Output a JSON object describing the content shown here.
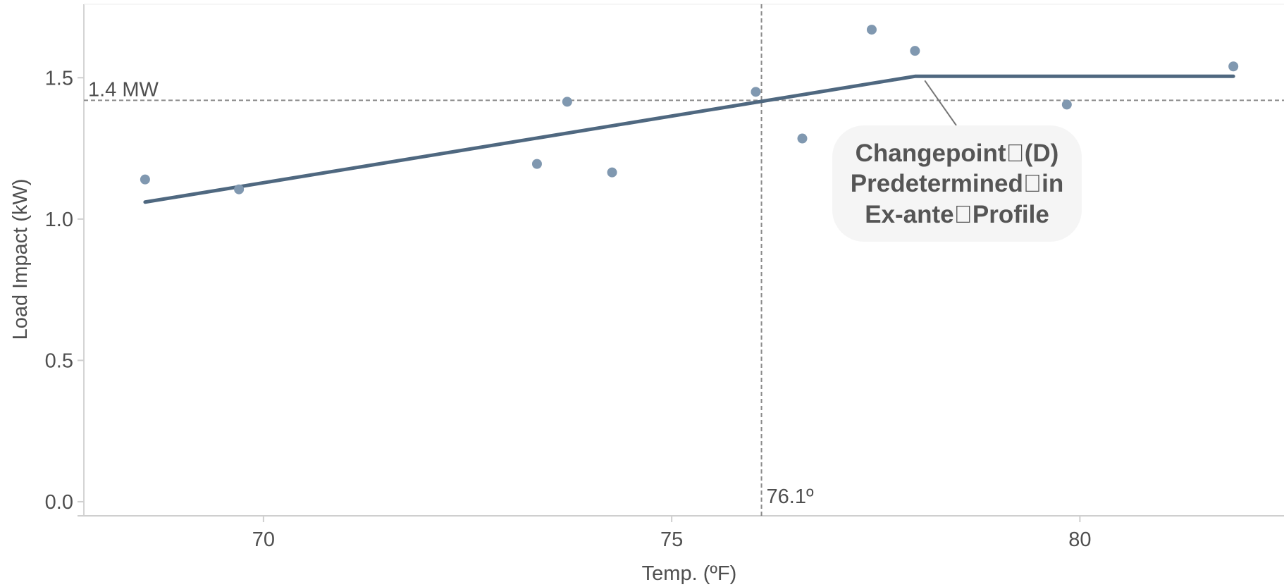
{
  "chart_data": {
    "type": "scatter",
    "xlabel": "Temp. (ºF)",
    "ylabel": "Load Impact (kW)",
    "xlim": [
      67.8,
      82.5
    ],
    "ylim": [
      -0.05,
      1.76
    ],
    "x_ticks": [
      70,
      75,
      80
    ],
    "x_tick_labels": [
      "70",
      "75",
      "80"
    ],
    "y_ticks": [
      0.0,
      0.5,
      1.0,
      1.5
    ],
    "y_tick_labels": [
      "0.0",
      "0.5",
      "1.0",
      "1.5"
    ],
    "grid": false,
    "points": [
      {
        "x": 68.55,
        "y": 1.14
      },
      {
        "x": 69.7,
        "y": 1.105
      },
      {
        "x": 73.35,
        "y": 1.195
      },
      {
        "x": 73.72,
        "y": 1.415
      },
      {
        "x": 74.27,
        "y": 1.165
      },
      {
        "x": 76.03,
        "y": 1.45
      },
      {
        "x": 76.6,
        "y": 1.285
      },
      {
        "x": 77.45,
        "y": 1.67
      },
      {
        "x": 77.98,
        "y": 1.595
      },
      {
        "x": 79.84,
        "y": 1.405
      },
      {
        "x": 81.88,
        "y": 1.54
      }
    ],
    "fit_line": [
      {
        "x": 68.55,
        "y": 1.06
      },
      {
        "x": 77.98,
        "y": 1.505
      },
      {
        "x": 81.88,
        "y": 1.505
      }
    ],
    "reference_lines": {
      "horizontal": {
        "y": 1.42,
        "label": "1.4 MW"
      },
      "vertical": {
        "x": 76.1,
        "label": "76.1º"
      }
    },
    "annotation": {
      "lines": [
        "Changepoint\u0000(D)",
        "Predetermined\u0000in",
        "Ex-ante\u0000Profile"
      ],
      "pointer_to": {
        "x": 78.1,
        "y": 1.49
      }
    },
    "colors": {
      "points": "#8098b0",
      "fit_line": "#4f6880",
      "reference": "#8a8a8a",
      "axis": "#cfcfcf",
      "text": "#4f4f4f",
      "callout_bg": "#f5f5f5"
    }
  }
}
